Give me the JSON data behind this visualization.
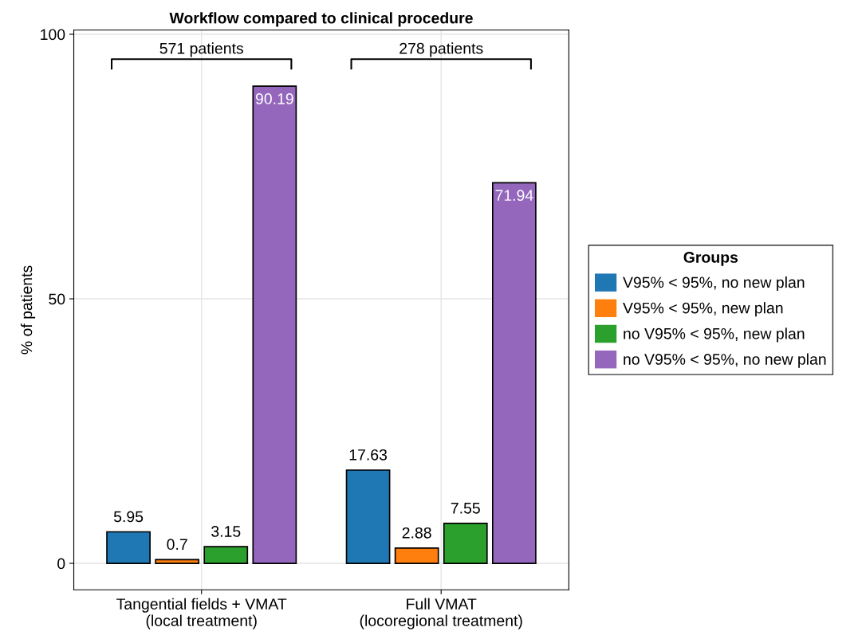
{
  "chart_data": {
    "type": "bar",
    "title": "Workflow compared to clinical procedure",
    "ylabel": "% of patients",
    "legend_title": "Groups",
    "categories": [
      "Tangential fields + VMAT\n(local treatment)",
      "Full VMAT\n(locoregional treatment)"
    ],
    "series": [
      {
        "name": "V95% < 95%, no new plan",
        "color": "#1f77b4",
        "values": [
          5.95,
          17.63
        ]
      },
      {
        "name": "V95% < 95%, new plan",
        "color": "#ff7f0e",
        "values": [
          0.7,
          2.88
        ]
      },
      {
        "name": "no V95% < 95%, new plan",
        "color": "#2ca02c",
        "values": [
          3.15,
          7.55
        ]
      },
      {
        "name": "no V95% < 95%, no new plan",
        "color": "#9467bd",
        "values": [
          90.19,
          71.94
        ]
      }
    ],
    "ylim": [
      -5,
      100.8
    ],
    "yticks": [
      0,
      50,
      100
    ],
    "grid": true,
    "legend": "right",
    "data_labels": true,
    "annotations": [
      "571 patients",
      "278 patients"
    ]
  }
}
